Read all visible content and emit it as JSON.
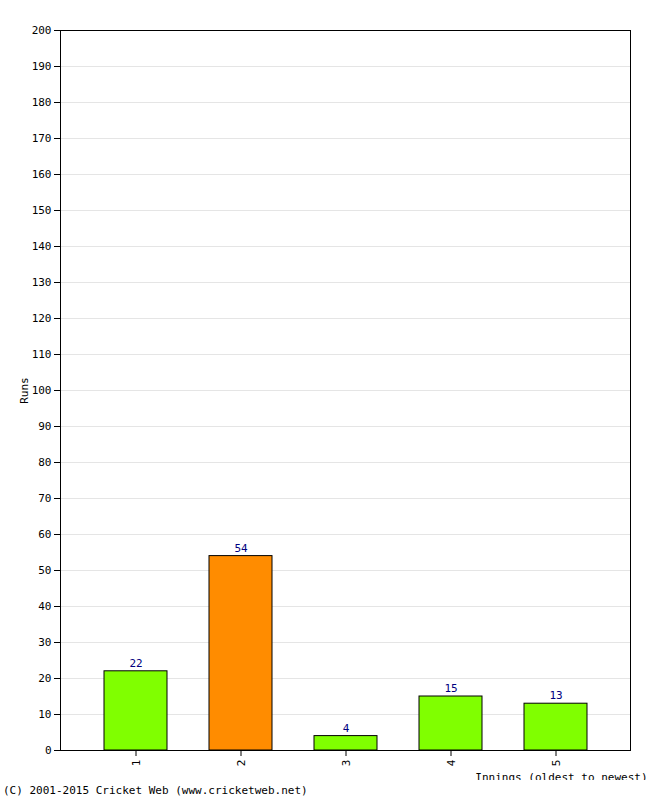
{
  "chart_data": {
    "type": "bar",
    "categories": [
      "1",
      "2",
      "3",
      "4",
      "5"
    ],
    "values": [
      22,
      54,
      4,
      15,
      13
    ],
    "colors": [
      "#80ff00",
      "#ff8c00",
      "#80ff00",
      "#80ff00",
      "#80ff00"
    ],
    "x_label": "Innings (oldest to newest)",
    "y_label": "Runs",
    "annotations": [
      "(C) 2001-2015 Cricket Web (www.cricketweb.net)"
    ],
    "ylim": [
      0,
      200
    ],
    "yticks": [
      0,
      10,
      20,
      30,
      40,
      50,
      60,
      70,
      80,
      90,
      100,
      110,
      120,
      130,
      140,
      150,
      160,
      170,
      180,
      190,
      200
    ],
    "grid": true,
    "data_labels": true
  }
}
